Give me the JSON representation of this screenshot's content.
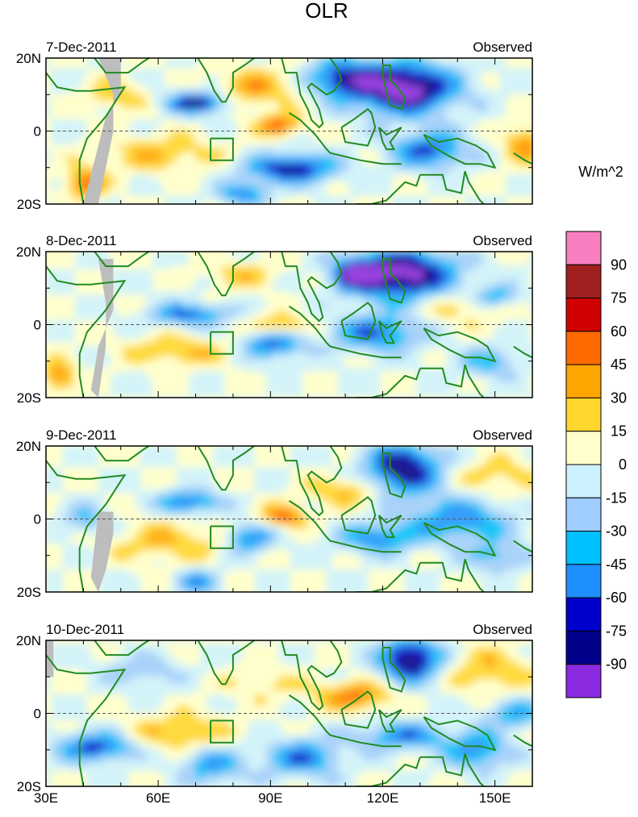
{
  "chart_data": {
    "type": "heatmap",
    "title": "OLR",
    "units": "W/m^2",
    "x_ticks": [
      "30E",
      "60E",
      "90E",
      "120E",
      "150E"
    ],
    "x_tick_values": [
      30,
      60,
      90,
      120,
      150
    ],
    "xlim": [
      30,
      160
    ],
    "y_ticks": [
      "20N",
      "0",
      "20S"
    ],
    "y_tick_values": [
      20,
      0,
      -20
    ],
    "ylim": [
      -20,
      20
    ],
    "equator_line": "dashed",
    "colorbar": {
      "levels": [
        "90",
        "75",
        "60",
        "45",
        "30",
        "15",
        "0",
        "-15",
        "-30",
        "-45",
        "-60",
        "-75",
        "-90"
      ],
      "level_values": [
        90,
        75,
        60,
        45,
        30,
        15,
        0,
        -15,
        -30,
        -45,
        -60,
        -75,
        -90
      ],
      "colors": [
        "#f77fbf",
        "#a02020",
        "#d00000",
        "#ff6a00",
        "#ffa500",
        "#ffd62e",
        "#ffffcc",
        "#cdf2ff",
        "#9fcdff",
        "#00bfff",
        "#1e90ff",
        "#0000cd",
        "#00008b",
        "#8a2be2"
      ]
    },
    "panels": [
      {
        "date": "7-Dec-2011",
        "label": "Observed"
      },
      {
        "date": "8-Dec-2011",
        "label": "Observed"
      },
      {
        "date": "9-Dec-2011",
        "label": "Observed"
      },
      {
        "date": "10-Dec-2011",
        "label": "Observed"
      }
    ]
  }
}
